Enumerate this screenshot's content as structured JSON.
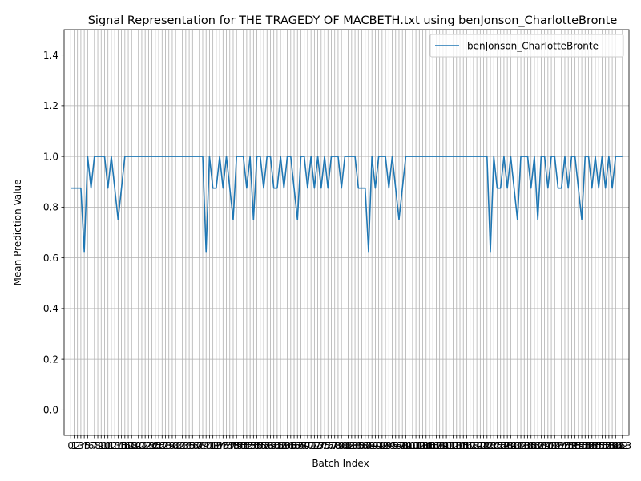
{
  "chart_data": {
    "type": "line",
    "title": "Signal Representation for THE TRAGEDY OF MACBETH.txt using benJonson_CharlotteBronte",
    "xlabel": "Batch Index",
    "ylabel": "Mean Prediction Value",
    "ylim": [
      -0.1,
      1.5
    ],
    "xlim": [
      -1.95,
      164.95
    ],
    "yticks": [
      "0.0",
      "0.2",
      "0.4",
      "0.6",
      "0.8",
      "1.0",
      "1.2",
      "1.4"
    ],
    "grid": true,
    "legend_position": "upper right",
    "series": [
      {
        "name": "benJonson_CharlotteBronte",
        "color": "#1f77b4",
        "values": [
          0.875,
          0.875,
          0.875,
          0.875,
          0.625,
          1.0,
          0.875,
          1.0,
          1.0,
          1.0,
          1.0,
          0.875,
          1.0,
          0.875,
          0.75,
          0.875,
          1.0,
          1.0,
          1.0,
          1.0,
          1.0,
          1.0,
          1.0,
          1.0,
          1.0,
          1.0,
          1.0,
          1.0,
          1.0,
          1.0,
          1.0,
          1.0,
          1.0,
          1.0,
          1.0,
          1.0,
          1.0,
          1.0,
          1.0,
          1.0,
          0.625,
          1.0,
          0.875,
          0.875,
          1.0,
          0.875,
          1.0,
          0.875,
          0.75,
          1.0,
          1.0,
          1.0,
          0.875,
          1.0,
          0.75,
          1.0,
          1.0,
          0.875,
          1.0,
          1.0,
          0.875,
          0.875,
          1.0,
          0.875,
          1.0,
          1.0,
          0.875,
          0.75,
          1.0,
          1.0,
          0.875,
          1.0,
          0.875,
          1.0,
          0.875,
          1.0,
          0.875,
          1.0,
          1.0,
          1.0,
          0.875,
          1.0,
          1.0,
          1.0,
          1.0,
          0.875,
          0.875,
          0.875,
          0.625,
          1.0,
          0.875,
          1.0,
          1.0,
          1.0,
          0.875,
          1.0,
          0.875,
          0.75,
          0.875,
          1.0,
          1.0,
          1.0,
          1.0,
          1.0,
          1.0,
          1.0,
          1.0,
          1.0,
          1.0,
          1.0,
          1.0,
          1.0,
          1.0,
          1.0,
          1.0,
          1.0,
          1.0,
          1.0,
          1.0,
          1.0,
          1.0,
          1.0,
          1.0,
          1.0,
          0.625,
          1.0,
          0.875,
          0.875,
          1.0,
          0.875,
          1.0,
          0.875,
          0.75,
          1.0,
          1.0,
          1.0,
          0.875,
          1.0,
          0.75,
          1.0,
          1.0,
          0.875,
          1.0,
          1.0,
          0.875,
          0.875,
          1.0,
          0.875,
          1.0,
          1.0,
          0.875,
          0.75,
          1.0,
          1.0,
          0.875,
          1.0,
          0.875,
          1.0,
          0.875,
          1.0,
          0.875,
          1.0,
          1.0,
          1.0
        ]
      }
    ],
    "x_tick_labels": [
      "0",
      "1",
      "2",
      "3",
      "4",
      "5",
      "6",
      "7",
      "8",
      "9",
      "10",
      "11",
      "12",
      "13",
      "14",
      "15",
      "16",
      "17",
      "18",
      "19",
      "20",
      "21",
      "22",
      "23",
      "24",
      "25",
      "26",
      "27",
      "28",
      "29",
      "30",
      "31",
      "32",
      "33",
      "34",
      "35",
      "36",
      "37",
      "38",
      "39",
      "40",
      "41",
      "42",
      "43",
      "44",
      "45",
      "46",
      "47",
      "48",
      "49",
      "50",
      "51",
      "52",
      "53",
      "54",
      "55",
      "56",
      "57",
      "58",
      "59",
      "60",
      "61",
      "62",
      "63",
      "64",
      "65",
      "66",
      "67",
      "68",
      "69",
      "70",
      "71",
      "72",
      "73",
      "74",
      "75",
      "76",
      "77",
      "78",
      "79",
      "80",
      "81",
      "82",
      "83",
      "84",
      "85",
      "86",
      "87",
      "88",
      "89",
      "90",
      "91",
      "92",
      "93",
      "94",
      "95",
      "96",
      "97",
      "98",
      "99",
      "100",
      "101",
      "102",
      "103",
      "104",
      "105",
      "106",
      "107",
      "108",
      "109",
      "110",
      "111",
      "112",
      "113",
      "114",
      "115",
      "116",
      "117",
      "118",
      "119",
      "120",
      "121",
      "122",
      "123",
      "124",
      "125",
      "126",
      "127",
      "128",
      "129",
      "130",
      "131",
      "132",
      "133",
      "134",
      "135",
      "136",
      "137",
      "138",
      "139",
      "140",
      "141",
      "142",
      "143",
      "144",
      "145",
      "146",
      "147",
      "148",
      "149",
      "150",
      "151",
      "152",
      "153",
      "154",
      "155",
      "156",
      "157",
      "158",
      "159",
      "160",
      "161",
      "162",
      "163"
    ]
  }
}
